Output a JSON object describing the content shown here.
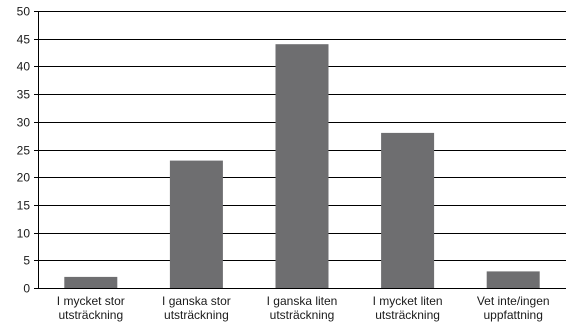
{
  "chart_data": {
    "type": "bar",
    "categories": [
      [
        "I mycket stor",
        "utsträckning"
      ],
      [
        "I ganska stor",
        "utsträckning"
      ],
      [
        "I ganska liten",
        "utsträckning"
      ],
      [
        "I mycket liten",
        "utsträckning"
      ],
      [
        "Vet inte/ingen",
        "uppfattning"
      ]
    ],
    "values": [
      2,
      23,
      44,
      28,
      3
    ],
    "ylim": [
      0,
      50
    ],
    "yticks": [
      0,
      5,
      10,
      15,
      20,
      25,
      30,
      35,
      40,
      45,
      50
    ],
    "grid": true,
    "bar_color": "#6e6e70",
    "title": "",
    "xlabel": "",
    "ylabel": ""
  }
}
